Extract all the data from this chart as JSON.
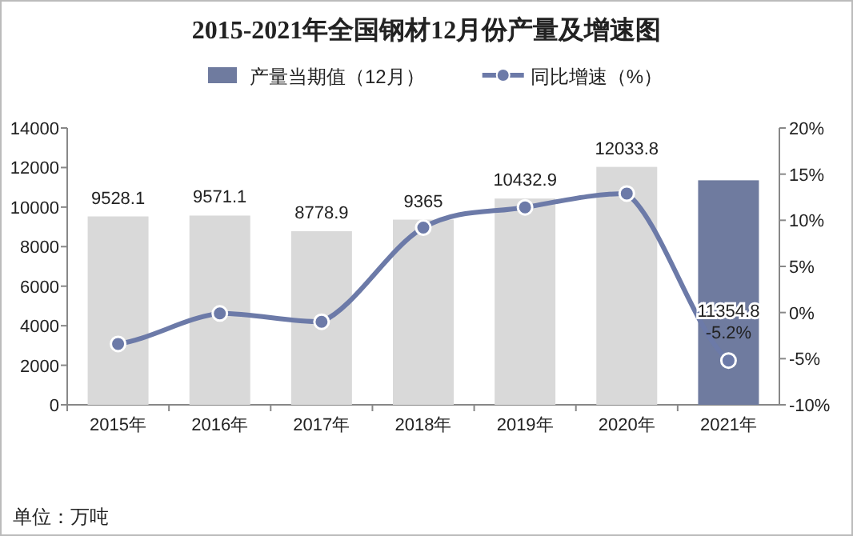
{
  "chart_data": {
    "type": "bar",
    "title": "2015-2021年全国钢材12月份产量及增速图",
    "categories": [
      "2015年",
      "2016年",
      "2017年",
      "2018年",
      "2019年",
      "2020年",
      "2021年"
    ],
    "series": [
      {
        "name": "产量当期值（12月）",
        "color": "#6f7b9f",
        "colors": [
          "#d9d9d9",
          "#d9d9d9",
          "#d9d9d9",
          "#d9d9d9",
          "#d9d9d9",
          "#d9d9d9",
          "#6f7b9f"
        ],
        "values": [
          9528.1,
          9571.1,
          8778.9,
          9365,
          10432.9,
          12033.8,
          11354.8
        ],
        "value_labels": [
          "9528.1",
          "9571.1",
          "8778.9",
          "9365",
          "10432.9",
          "12033.8",
          "11354.8"
        ]
      },
      {
        "name": "同比增速（%）",
        "type": "line",
        "axis": "y2",
        "color": "#6c7aa8",
        "marker": "circle",
        "values": [
          -3.4,
          -0.1,
          -1.0,
          9.2,
          11.4,
          12.9,
          -5.2
        ],
        "value_labels": [
          null,
          null,
          null,
          null,
          null,
          null,
          "-5.2%"
        ]
      }
    ],
    "ylim": [
      0,
      14000
    ],
    "yticks": [
      0,
      2000,
      4000,
      6000,
      8000,
      10000,
      12000,
      14000
    ],
    "y2lim": [
      -10,
      20
    ],
    "y2ticks": [
      {
        "value": -10,
        "label": "-10%"
      },
      {
        "value": -5,
        "label": "-5%"
      },
      {
        "value": 0,
        "label": "0%"
      },
      {
        "value": 5,
        "label": "5%"
      },
      {
        "value": 10,
        "label": "10%"
      },
      {
        "value": 15,
        "label": "15%"
      },
      {
        "value": 20,
        "label": "20%"
      }
    ],
    "legend": "top",
    "annotations": [
      "单位：万吨"
    ]
  }
}
